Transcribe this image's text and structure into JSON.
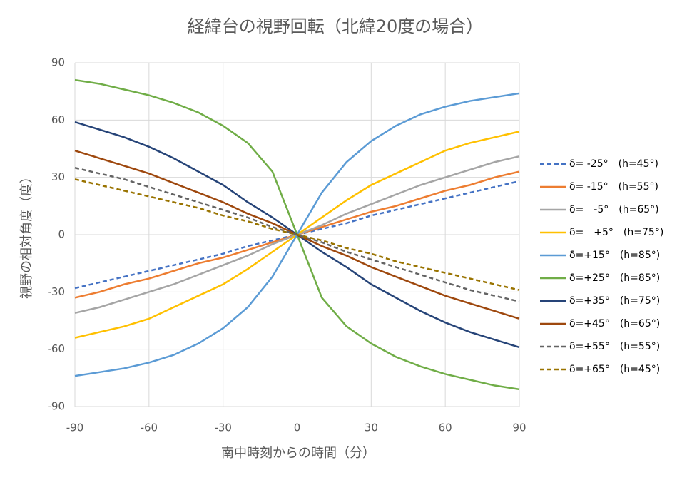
{
  "chart_data": {
    "type": "line",
    "title": "経緯台の視野回転（北緯20度の場合）",
    "x_label": "南中時刻からの時間（分）",
    "y_label": "視野の相対角度（度）",
    "x": [
      -90,
      -80,
      -70,
      -60,
      -50,
      -40,
      -30,
      -20,
      -10,
      0,
      10,
      20,
      30,
      40,
      50,
      60,
      70,
      80,
      90
    ],
    "xlim": [
      -90,
      90
    ],
    "xticks": [
      -90,
      -60,
      -30,
      0,
      30,
      60,
      90
    ],
    "ylim": [
      -90,
      90
    ],
    "yticks": [
      -90,
      -60,
      -30,
      0,
      30,
      60,
      90
    ],
    "grid": true,
    "legend": "right",
    "series": [
      {
        "name": "δ= -25°　(h=45°)",
        "color": "#4472c4",
        "dashed": true,
        "values": [
          -28,
          -25,
          -22,
          -19,
          -16,
          -13,
          -10,
          -6,
          -3,
          0,
          3,
          6,
          10,
          13,
          16,
          19,
          22,
          25,
          28
        ]
      },
      {
        "name": "δ= -15°　(h=55°)",
        "color": "#ed7d31",
        "dashed": false,
        "values": [
          -33,
          -30,
          -26,
          -23,
          -19,
          -15,
          -12,
          -8,
          -4,
          0,
          4,
          8,
          12,
          15,
          19,
          23,
          26,
          30,
          33
        ]
      },
      {
        "name": "δ=　-5°　(h=65°)",
        "color": "#a5a5a5",
        "dashed": false,
        "values": [
          -41,
          -38,
          -34,
          -30,
          -26,
          -21,
          -16,
          -11,
          -5,
          0,
          5,
          11,
          16,
          21,
          26,
          30,
          34,
          38,
          41
        ]
      },
      {
        "name": "δ=　+5°　(h=75°)",
        "color": "#ffc000",
        "dashed": false,
        "values": [
          -54,
          -51,
          -48,
          -44,
          -38,
          -32,
          -26,
          -18,
          -9,
          0,
          9,
          18,
          26,
          32,
          38,
          44,
          48,
          51,
          54
        ]
      },
      {
        "name": "δ=+15°　(h=85°)",
        "color": "#5b9bd5",
        "dashed": false,
        "values": [
          -74,
          -72,
          -70,
          -67,
          -63,
          -57,
          -49,
          -38,
          -22,
          0,
          22,
          38,
          49,
          57,
          63,
          67,
          70,
          72,
          74
        ]
      },
      {
        "name": "δ=+25°　(h=85°)",
        "color": "#70ad47",
        "dashed": false,
        "values": [
          81,
          79,
          76,
          73,
          69,
          64,
          57,
          48,
          33,
          0,
          -33,
          -48,
          -57,
          -64,
          -69,
          -73,
          -76,
          -79,
          -81
        ]
      },
      {
        "name": "δ=+35°　(h=75°)",
        "color": "#264478",
        "dashed": false,
        "values": [
          59,
          55,
          51,
          46,
          40,
          33,
          26,
          17,
          9,
          0,
          -9,
          -17,
          -26,
          -33,
          -40,
          -46,
          -51,
          -55,
          -59
        ]
      },
      {
        "name": "δ=+45°　(h=65°)",
        "color": "#9e480e",
        "dashed": false,
        "values": [
          44,
          40,
          36,
          32,
          27,
          22,
          17,
          11,
          6,
          0,
          -6,
          -11,
          -17,
          -22,
          -27,
          -32,
          -36,
          -40,
          -44
        ]
      },
      {
        "name": "δ=+55°　(h=55°)",
        "color": "#636363",
        "dashed": true,
        "values": [
          35,
          32,
          29,
          25,
          21,
          17,
          13,
          9,
          4,
          0,
          -4,
          -9,
          -13,
          -17,
          -21,
          -25,
          -29,
          -32,
          -35
        ]
      },
      {
        "name": "δ=+65°　(h=45°)",
        "color": "#997300",
        "dashed": true,
        "values": [
          29,
          26,
          23,
          20,
          17,
          14,
          10,
          7,
          3,
          0,
          -3,
          -7,
          -10,
          -14,
          -17,
          -20,
          -23,
          -26,
          -29
        ]
      }
    ]
  }
}
